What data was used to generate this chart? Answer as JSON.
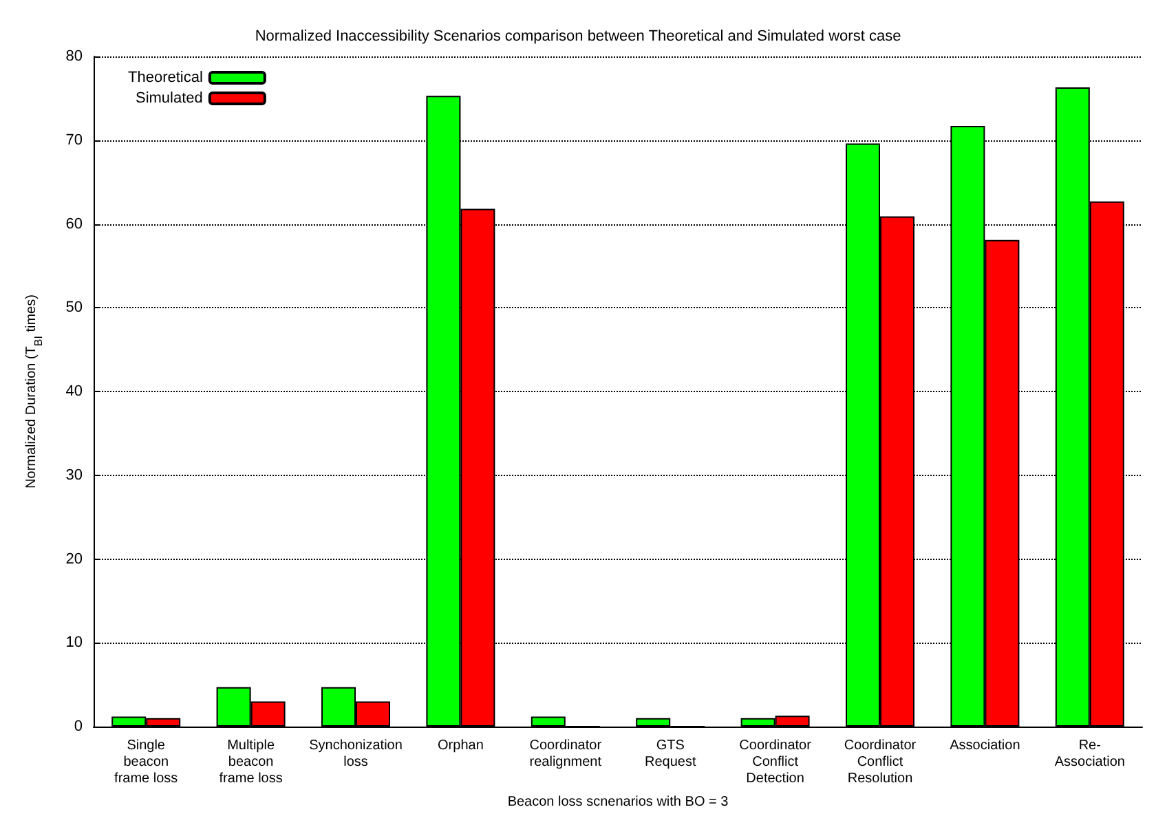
{
  "chart_data": {
    "type": "bar",
    "title": "Normalized Inaccessibility Scenarios comparison between Theoretical and Simulated worst case",
    "xlabel": "Beacon loss scnenarios with BO = 3",
    "ylabel": "Normalized Duration (T$_{BI}$ times)",
    "categories": [
      "Single\nbeacon\nframe loss",
      "Multiple\nbeacon\nframe loss",
      "Synchonization\nloss",
      "Orphan",
      "Coordinator\nrealignment",
      "GTS\nRequest",
      "Coordinator\nConflict\nDetection",
      "Coordinator\nConflict\nResolution",
      "Association",
      "Re-\nAssociation"
    ],
    "series": [
      {
        "name": "Theoretical",
        "color": "#00ff00",
        "values": [
          1.2,
          4.7,
          4.7,
          75.3,
          1.2,
          1.0,
          1.0,
          69.6,
          71.7,
          76.3
        ]
      },
      {
        "name": "Simulated",
        "color": "#ff0000",
        "values": [
          1.0,
          3.0,
          3.0,
          61.8,
          0,
          0,
          1.3,
          60.9,
          58.1,
          62.7
        ]
      }
    ],
    "ylim": [
      0,
      80
    ],
    "yticks": [
      0,
      10,
      20,
      30,
      40,
      50,
      60,
      70,
      80
    ],
    "grid": "y",
    "legend": "top left"
  }
}
